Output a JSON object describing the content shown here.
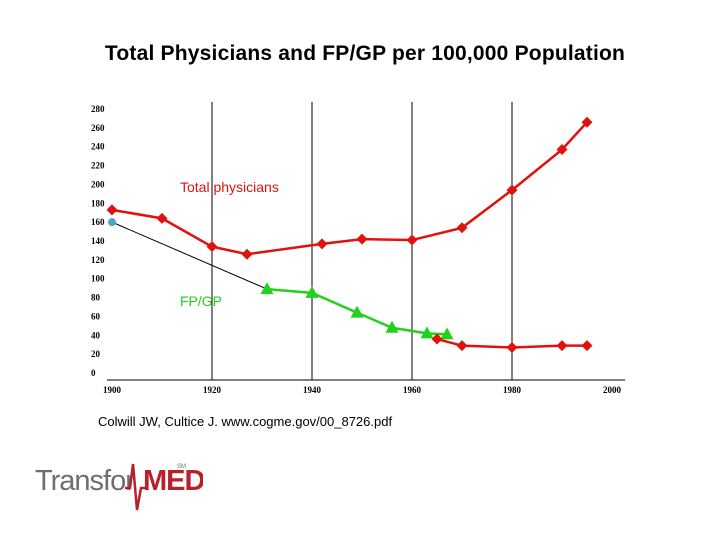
{
  "title": "Total Physicians and FP/GP per 100,000 Population",
  "source": "Colwill JW, Cultice J.   www.cogme.gov/00_8726.pdf",
  "logo": {
    "text_light": "Transfor",
    "text_bold": "MED",
    "mark": "SM"
  },
  "colors": {
    "total": "#e0120d",
    "fpgp": "#21d11c",
    "trend": "#000000",
    "estimate_point": "#4aa8c7"
  },
  "chart_data": {
    "type": "line",
    "title": "Total Physicians and FP/GP per 100,000 Population",
    "xlabel": "",
    "ylabel": "",
    "xlim": [
      1900,
      2000
    ],
    "ylim": [
      0,
      280
    ],
    "x_ticks": [
      1900,
      1920,
      1940,
      1960,
      1980,
      2000
    ],
    "y_ticks": [
      0,
      20,
      40,
      60,
      80,
      100,
      120,
      140,
      160,
      180,
      200,
      220,
      240,
      260,
      280
    ],
    "vertical_gridlines": [
      1920,
      1940,
      1960,
      1980
    ],
    "series": [
      {
        "name": "Total physicians",
        "marker": "diamond",
        "x": [
          1900,
          1910,
          1920,
          1927,
          1942,
          1950,
          1960,
          1970,
          1980,
          1990,
          1995
        ],
        "y": [
          173,
          164,
          134,
          126,
          137,
          142,
          141,
          154,
          194,
          237,
          266
        ]
      },
      {
        "name": "FP/GP",
        "marker": "triangle",
        "x": [
          1931,
          1940,
          1949,
          1956,
          1963,
          1967
        ],
        "y": [
          89,
          85,
          64,
          48,
          42,
          41
        ]
      },
      {
        "name": "",
        "marker": "diamond",
        "x": [
          1965,
          1970,
          1980,
          1990,
          1995
        ],
        "y": [
          36,
          29,
          27,
          29,
          29
        ]
      },
      {
        "name": "",
        "marker": "circle",
        "x": [
          1900
        ],
        "y": [
          160
        ]
      },
      {
        "name": "",
        "marker": "none",
        "x": [
          1900,
          1931
        ],
        "y": [
          160,
          89
        ]
      }
    ],
    "annotations": [
      {
        "text": "Total physicians",
        "series": 0
      },
      {
        "text": "FP/GP",
        "series": 1
      }
    ]
  }
}
